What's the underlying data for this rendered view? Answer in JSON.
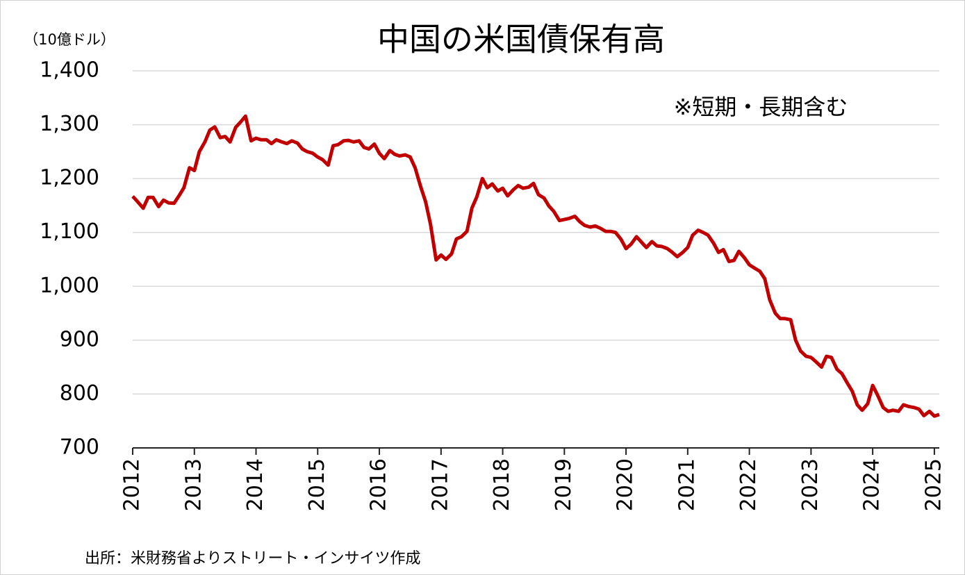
{
  "chart_data": {
    "type": "line",
    "title": "中国の米国債保有高",
    "y_unit": "（10億ドル）",
    "annotation": "※短期・長期含む",
    "source": "出所：米財務省よりストリート・インサイツ作成",
    "x": [
      2012,
      2012.08,
      2012.17,
      2012.25,
      2012.33,
      2012.42,
      2012.5,
      2012.58,
      2012.67,
      2012.75,
      2012.83,
      2012.92,
      2013,
      2013.08,
      2013.17,
      2013.25,
      2013.33,
      2013.42,
      2013.5,
      2013.58,
      2013.67,
      2013.75,
      2013.83,
      2013.92,
      2014,
      2014.08,
      2014.17,
      2014.25,
      2014.33,
      2014.42,
      2014.5,
      2014.58,
      2014.67,
      2014.75,
      2014.83,
      2014.92,
      2015,
      2015.08,
      2015.17,
      2015.25,
      2015.33,
      2015.42,
      2015.5,
      2015.58,
      2015.67,
      2015.75,
      2015.83,
      2015.92,
      2016,
      2016.08,
      2016.17,
      2016.25,
      2016.33,
      2016.42,
      2016.5,
      2016.58,
      2016.67,
      2016.75,
      2016.83,
      2016.92,
      2017,
      2017.08,
      2017.17,
      2017.25,
      2017.33,
      2017.42,
      2017.5,
      2017.58,
      2017.67,
      2017.75,
      2017.83,
      2017.92,
      2018,
      2018.08,
      2018.17,
      2018.25,
      2018.33,
      2018.42,
      2018.5,
      2018.58,
      2018.67,
      2018.75,
      2018.83,
      2018.92,
      2019,
      2019.08,
      2019.17,
      2019.25,
      2019.33,
      2019.42,
      2019.5,
      2019.58,
      2019.67,
      2019.75,
      2019.83,
      2019.92,
      2020,
      2020.08,
      2020.17,
      2020.25,
      2020.33,
      2020.42,
      2020.5,
      2020.58,
      2020.67,
      2020.75,
      2020.83,
      2020.92,
      2021,
      2021.08,
      2021.17,
      2021.25,
      2021.33,
      2021.42,
      2021.5,
      2021.58,
      2021.67,
      2021.75,
      2021.83,
      2021.92,
      2022,
      2022.08,
      2022.17,
      2022.25,
      2022.33,
      2022.42,
      2022.5,
      2022.58,
      2022.67,
      2022.75,
      2022.83,
      2022.92,
      2023,
      2023.08,
      2023.17,
      2023.25,
      2023.33,
      2023.42,
      2023.5,
      2023.58,
      2023.67,
      2023.75,
      2023.83,
      2023.92,
      2024,
      2024.08,
      2024.17,
      2024.25,
      2024.33,
      2024.42,
      2024.5,
      2024.58,
      2024.67,
      2024.75,
      2024.83,
      2024.92,
      2025,
      2025.08
    ],
    "series": [
      {
        "name": "中国の米国債保有高",
        "color": "#c00000",
        "values": [
          1167,
          1157,
          1145,
          1165,
          1165,
          1148,
          1160,
          1155,
          1154,
          1168,
          1183,
          1220,
          1215,
          1250,
          1268,
          1290,
          1296,
          1276,
          1278,
          1268,
          1295,
          1305,
          1316,
          1270,
          1275,
          1272,
          1272,
          1265,
          1272,
          1268,
          1265,
          1270,
          1266,
          1255,
          1250,
          1247,
          1240,
          1235,
          1225,
          1261,
          1263,
          1270,
          1271,
          1268,
          1270,
          1258,
          1255,
          1264,
          1247,
          1237,
          1252,
          1245,
          1242,
          1244,
          1240,
          1220,
          1185,
          1157,
          1115,
          1049,
          1058,
          1050,
          1060,
          1088,
          1092,
          1102,
          1145,
          1166,
          1200,
          1183,
          1190,
          1177,
          1182,
          1168,
          1179,
          1187,
          1182,
          1184,
          1191,
          1170,
          1164,
          1149,
          1139,
          1122,
          1124,
          1126,
          1130,
          1120,
          1113,
          1110,
          1112,
          1108,
          1102,
          1102,
          1100,
          1087,
          1070,
          1078,
          1092,
          1082,
          1072,
          1083,
          1075,
          1074,
          1070,
          1063,
          1055,
          1063,
          1072,
          1095,
          1104,
          1100,
          1095,
          1080,
          1063,
          1068,
          1046,
          1048,
          1065,
          1053,
          1040,
          1034,
          1028,
          1014,
          975,
          950,
          940,
          940,
          938,
          900,
          880,
          870,
          868,
          860,
          850,
          870,
          868,
          846,
          838,
          822,
          805,
          780,
          770,
          782,
          816,
          798,
          775,
          768,
          770,
          768,
          780,
          777,
          775,
          772,
          760,
          768,
          759,
          762
        ]
      }
    ],
    "xlim": [
      2012,
      2025.08
    ],
    "xticks": [
      2012,
      2013,
      2014,
      2015,
      2016,
      2017,
      2018,
      2019,
      2020,
      2021,
      2022,
      2023,
      2024,
      2025
    ],
    "ylim": [
      700,
      1400
    ],
    "yticks": [
      700,
      800,
      900,
      {
        "value": 1000,
        "label": "1,000"
      },
      {
        "value": 1100,
        "label": "1,100"
      },
      {
        "value": 1200,
        "label": "1,200"
      },
      {
        "value": 1300,
        "label": "1,300"
      },
      {
        "value": 1400,
        "label": "1,400"
      }
    ],
    "grid": true
  }
}
